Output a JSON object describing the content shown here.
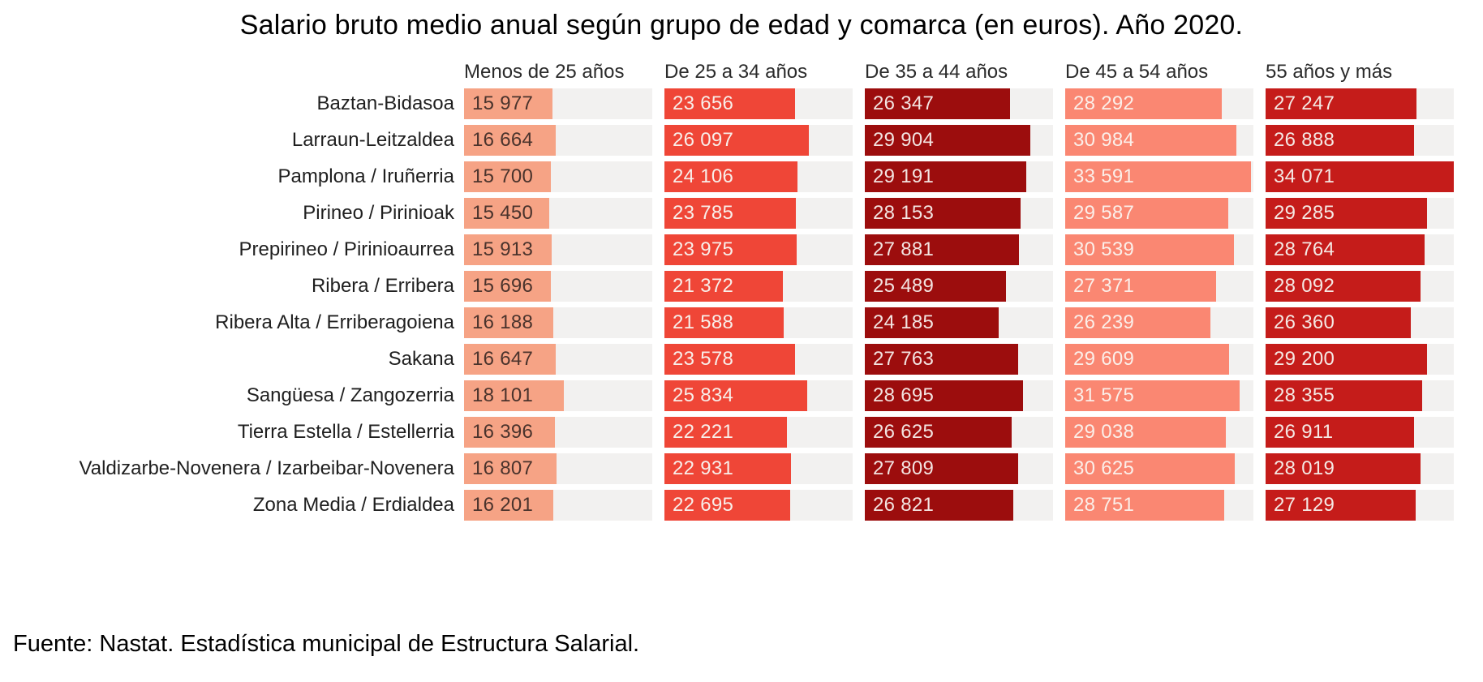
{
  "title": "Salario bruto medio anual según grupo de edad y comarca (en euros). Año 2020.",
  "footer": "Fuente: Nastat. Estadística municipal de Estructura Salarial.",
  "chart_data": {
    "type": "bar",
    "title": "Salario bruto medio anual según grupo de edad y comarca (en euros). Año 2020.",
    "xlabel": "",
    "ylabel": "",
    "legend_position": "none",
    "grid": false,
    "value_scale_max": 34071,
    "categories": [
      "Menos de 25 años",
      "De 25 a 34 años",
      "De 35 a 44 años",
      "De 45 a 54 años",
      "55 años y más"
    ],
    "column_colors": [
      "#f6a385",
      "#ef4637",
      "#9c0d0d",
      "#fa8772",
      "#c51c1a"
    ],
    "track_color": "#f2f1f0",
    "rows": [
      {
        "label": "Baztan-Bidasoa",
        "values": [
          15977,
          23656,
          26347,
          28292,
          27247
        ]
      },
      {
        "label": "Larraun-Leitzaldea",
        "values": [
          16664,
          26097,
          29904,
          30984,
          26888
        ]
      },
      {
        "label": "Pamplona / Iruñerria",
        "values": [
          15700,
          24106,
          29191,
          33591,
          34071
        ]
      },
      {
        "label": "Pirineo / Pirinioak",
        "values": [
          15450,
          23785,
          28153,
          29587,
          29285
        ]
      },
      {
        "label": "Prepirineo / Pirinioaurrea",
        "values": [
          15913,
          23975,
          27881,
          30539,
          28764
        ]
      },
      {
        "label": "Ribera / Erribera",
        "values": [
          15696,
          21372,
          25489,
          27371,
          28092
        ]
      },
      {
        "label": "Ribera Alta / Erriberagoiena",
        "values": [
          16188,
          21588,
          24185,
          26239,
          26360
        ]
      },
      {
        "label": "Sakana",
        "values": [
          16647,
          23578,
          27763,
          29609,
          29200
        ]
      },
      {
        "label": "Sangüesa / Zangozerria",
        "values": [
          18101,
          25834,
          28695,
          31575,
          28355
        ]
      },
      {
        "label": "Tierra Estella / Estellerria",
        "values": [
          16396,
          22221,
          26625,
          29038,
          26911
        ]
      },
      {
        "label": "Valdizarbe-Novenera / Izarbeibar-Novenera",
        "values": [
          16807,
          22931,
          27809,
          30625,
          28019
        ]
      },
      {
        "label": "Zona Media / Erdialdea",
        "values": [
          16201,
          22695,
          26821,
          28751,
          27129
        ]
      }
    ]
  }
}
